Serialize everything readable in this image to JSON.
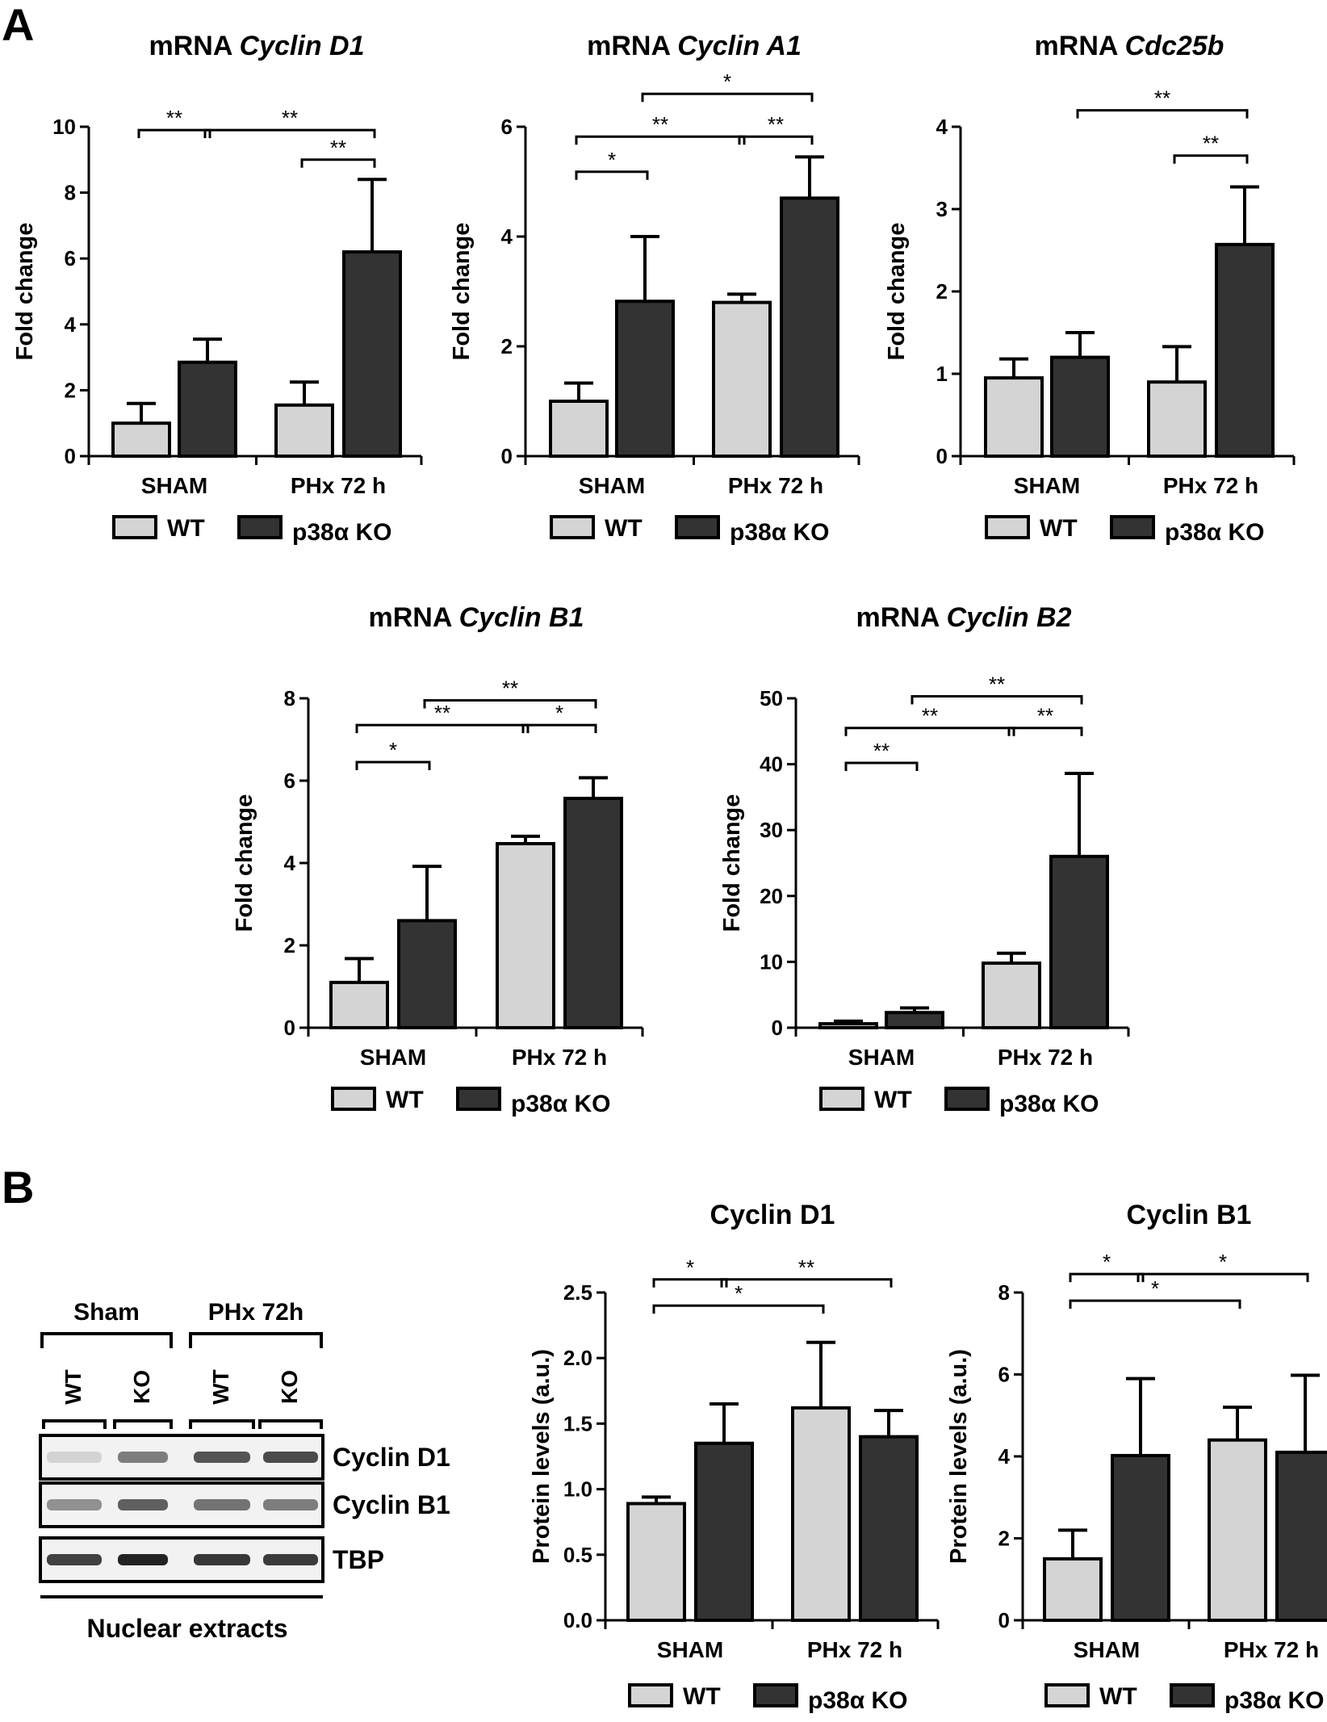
{
  "panels": {
    "a": "A",
    "b": "B"
  },
  "colors": {
    "wt": "#d4d4d4",
    "ko": "#333333",
    "axis": "#000000"
  },
  "chart_data": [
    {
      "type": "bar",
      "title_prefix": "mRNA ",
      "title_gene": "Cyclin D1",
      "ylabel": "Fold change",
      "ylim": [
        0,
        10
      ],
      "yticks": [
        "0",
        "2",
        "4",
        "6",
        "8",
        "10"
      ],
      "categories": [
        "SHAM",
        "PHx 72 h"
      ],
      "series": [
        {
          "name": "WT",
          "values": [
            1.0,
            1.55
          ],
          "errors": [
            0.6,
            0.7
          ]
        },
        {
          "name": "p38α KO",
          "values": [
            2.85,
            6.2
          ],
          "errors": [
            0.7,
            2.2
          ]
        }
      ],
      "significance": [
        {
          "from": 0,
          "to": 1,
          "label": "**",
          "level": 9.9
        },
        {
          "from": 1,
          "to": 3,
          "label": "**",
          "level": 9.9
        },
        {
          "from": 2,
          "to": 3,
          "label": "**",
          "level": 9.0
        }
      ],
      "legend": [
        "WT",
        "p38α KO"
      ]
    },
    {
      "type": "bar",
      "title_prefix": "mRNA ",
      "title_gene": "Cyclin A1",
      "ylabel": "Fold change",
      "ylim": [
        0,
        6
      ],
      "yticks": [
        "0",
        "2",
        "4",
        "6"
      ],
      "categories": [
        "SHAM",
        "PHx 72 h"
      ],
      "series": [
        {
          "name": "WT",
          "values": [
            1.0,
            2.8
          ],
          "errors": [
            0.33,
            0.15
          ]
        },
        {
          "name": "p38α KO",
          "values": [
            2.82,
            4.7
          ],
          "errors": [
            1.18,
            0.75
          ]
        }
      ],
      "significance": [
        {
          "from": 0,
          "to": 1,
          "label": "*",
          "level": 5.18
        },
        {
          "from": 0,
          "to": 2,
          "label": "**",
          "level": 5.82
        },
        {
          "from": 2,
          "to": 3,
          "label": "**",
          "level": 5.82
        },
        {
          "from": 1,
          "to": 3,
          "label": "*",
          "level": 6.6
        }
      ],
      "legend": [
        "WT",
        "p38α KO"
      ]
    },
    {
      "type": "bar",
      "title_prefix": "mRNA ",
      "title_gene": "Cdc25b",
      "ylabel": "Fold change",
      "ylim": [
        0,
        4
      ],
      "yticks": [
        "0",
        "1",
        "2",
        "3",
        "4"
      ],
      "categories": [
        "SHAM",
        "PHx 72 h"
      ],
      "series": [
        {
          "name": "WT",
          "values": [
            0.95,
            0.9
          ],
          "errors": [
            0.23,
            0.43
          ]
        },
        {
          "name": "p38α KO",
          "values": [
            1.2,
            2.57
          ],
          "errors": [
            0.3,
            0.7
          ]
        }
      ],
      "significance": [
        {
          "from": 2,
          "to": 3,
          "label": "**",
          "level": 3.65
        },
        {
          "from": 1,
          "to": 3,
          "label": "**",
          "level": 4.2
        }
      ],
      "legend": [
        "WT",
        "p38α KO"
      ]
    },
    {
      "type": "bar",
      "title_prefix": "mRNA ",
      "title_gene": "Cyclin B1",
      "ylabel": "Fold change",
      "ylim": [
        0,
        8
      ],
      "yticks": [
        "0",
        "2",
        "4",
        "6",
        "8"
      ],
      "categories": [
        "SHAM",
        "PHx 72 h"
      ],
      "series": [
        {
          "name": "WT",
          "values": [
            1.1,
            4.47
          ],
          "errors": [
            0.58,
            0.18
          ]
        },
        {
          "name": "p38α KO",
          "values": [
            2.6,
            5.57
          ],
          "errors": [
            1.32,
            0.5
          ]
        }
      ],
      "significance": [
        {
          "from": 0,
          "to": 1,
          "label": "*",
          "level": 6.45
        },
        {
          "from": 0,
          "to": 2,
          "label": "**",
          "level": 7.35
        },
        {
          "from": 2,
          "to": 3,
          "label": "*",
          "level": 7.35
        },
        {
          "from": 1,
          "to": 3,
          "label": "**",
          "level": 7.95
        }
      ],
      "legend": [
        "WT",
        "p38α KO"
      ]
    },
    {
      "type": "bar",
      "title_prefix": "mRNA ",
      "title_gene": "Cyclin B2",
      "ylabel": "Fold change",
      "ylim": [
        0,
        50
      ],
      "yticks": [
        "0",
        "10",
        "20",
        "30",
        "40",
        "50"
      ],
      "categories": [
        "SHAM",
        "PHx 72 h"
      ],
      "series": [
        {
          "name": "WT",
          "values": [
            0.6,
            9.8
          ],
          "errors": [
            0.4,
            1.5
          ]
        },
        {
          "name": "p38α KO",
          "values": [
            2.3,
            26.0
          ],
          "errors": [
            0.7,
            12.6
          ]
        }
      ],
      "significance": [
        {
          "from": 0,
          "to": 1,
          "label": "**",
          "level": 40.2
        },
        {
          "from": 0,
          "to": 2,
          "label": "**",
          "level": 45.5
        },
        {
          "from": 2,
          "to": 3,
          "label": "**",
          "level": 45.5
        },
        {
          "from": 1,
          "to": 3,
          "label": "**",
          "level": 50.3
        }
      ],
      "legend": [
        "WT",
        "p38α KO"
      ]
    },
    {
      "type": "bar",
      "title_prefix": "Cyclin D1",
      "title_gene": "",
      "ylabel": "Protein levels (a.u.)",
      "ylim": [
        0,
        2.5
      ],
      "yticks": [
        "0.0",
        "0.5",
        "1.0",
        "1.5",
        "2.0",
        "2.5"
      ],
      "categories": [
        "SHAM",
        "PHx 72 h"
      ],
      "series": [
        {
          "name": "WT",
          "values": [
            0.89,
            1.62
          ],
          "errors": [
            0.05,
            0.5
          ]
        },
        {
          "name": "p38α KO",
          "values": [
            1.35,
            1.4
          ],
          "errors": [
            0.3,
            0.2
          ]
        }
      ],
      "significance": [
        {
          "from": 0,
          "to": 1,
          "label": "*",
          "level": 2.6
        },
        {
          "from": 1,
          "to": 3,
          "label": "**",
          "level": 2.6
        },
        {
          "from": 0,
          "to": 2,
          "label": "*",
          "level": 2.4
        }
      ],
      "legend": [
        "WT",
        "p38α KO"
      ]
    },
    {
      "type": "bar",
      "title_prefix": "Cyclin B1",
      "title_gene": "",
      "ylabel": "Protein levels (a.u.)",
      "ylim": [
        0,
        8
      ],
      "yticks": [
        "0",
        "2",
        "4",
        "6",
        "8"
      ],
      "categories": [
        "SHAM",
        "PHx 72 h"
      ],
      "series": [
        {
          "name": "WT",
          "values": [
            1.5,
            4.4
          ],
          "errors": [
            0.7,
            0.8
          ]
        },
        {
          "name": "p38α KO",
          "values": [
            4.02,
            4.1
          ],
          "errors": [
            1.88,
            1.88
          ]
        }
      ],
      "significance": [
        {
          "from": 0,
          "to": 1,
          "label": "*",
          "level": 8.45
        },
        {
          "from": 1,
          "to": 3,
          "label": "*",
          "level": 8.45
        },
        {
          "from": 0,
          "to": 2,
          "label": "*",
          "level": 7.8
        }
      ],
      "legend": [
        "WT",
        "p38α KO"
      ]
    }
  ],
  "blot": {
    "groups": [
      "Sham",
      "PHx 72h"
    ],
    "lanes": [
      "WT",
      "KO",
      "WT",
      "KO"
    ],
    "bands": [
      {
        "label": "Cyclin D1",
        "intensity": [
          0.12,
          0.55,
          0.75,
          0.8
        ]
      },
      {
        "label": "Cyclin B1",
        "intensity": [
          0.45,
          0.7,
          0.6,
          0.55
        ]
      },
      {
        "label": "TBP",
        "intensity": [
          0.85,
          1.0,
          0.9,
          0.88
        ]
      }
    ],
    "footer": "Nuclear extracts"
  }
}
